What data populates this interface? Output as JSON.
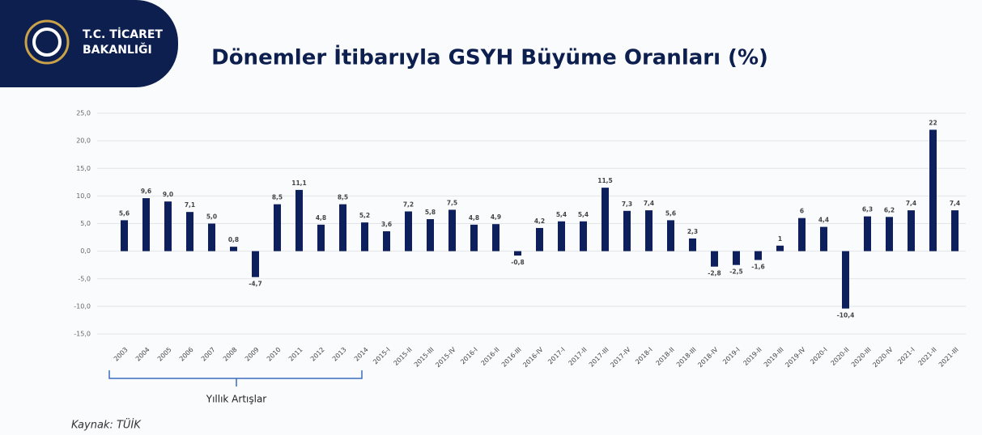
{
  "header": {
    "logo_line1": "T.C. TİCARET",
    "logo_line2": "BAKANLIĞI"
  },
  "chart_data": {
    "type": "bar",
    "title": "Dönemler İtibarıyla GSYH Büyüme Oranları (%)",
    "categories": [
      "2003",
      "2004",
      "2005",
      "2006",
      "2007",
      "2008",
      "2009",
      "2010",
      "2011",
      "2012",
      "2013",
      "2014",
      "2015-I",
      "2015-II",
      "2015-III",
      "2015-IV",
      "2016-I",
      "2016-II",
      "2016-III",
      "2016-IV",
      "2017-I",
      "2017-II",
      "2017-III",
      "2017-IV",
      "2018-I",
      "2018-II",
      "2018-III",
      "2018-IV",
      "2019-I",
      "2019-II",
      "2019-III",
      "2019-IV",
      "2020-I",
      "2020-II",
      "2020-III",
      "2020-IV",
      "2021-I",
      "2021-II",
      "2021-III"
    ],
    "values": [
      5.6,
      9.6,
      9.0,
      7.1,
      5.0,
      0.8,
      -4.7,
      8.5,
      11.1,
      4.8,
      8.5,
      5.2,
      3.6,
      7.2,
      5.8,
      7.5,
      4.8,
      4.9,
      -0.8,
      4.2,
      5.4,
      5.4,
      11.5,
      7.3,
      7.4,
      5.6,
      2.3,
      -2.8,
      -2.5,
      -1.6,
      1,
      6,
      4.4,
      -10.4,
      6.3,
      6.2,
      7.4,
      22,
      7.4
    ],
    "value_labels": [
      "5,6",
      "9,6",
      "9,0",
      "7,1",
      "5,0",
      "0,8",
      "-4,7",
      "8,5",
      "11,1",
      "4,8",
      "8,5",
      "5,2",
      "3,6",
      "7,2",
      "5,8",
      "7,5",
      "4,8",
      "4,9",
      "-0,8",
      "4,2",
      "5,4",
      "5,4",
      "11,5",
      "7,3",
      "7,4",
      "5,6",
      "2,3",
      "-2,8",
      "-2,5",
      "-1,6",
      "1",
      "6",
      "4,4",
      "-10,4",
      "6,3",
      "6,2",
      "7,4",
      "22",
      "7,4"
    ],
    "color": "#0d1f5c",
    "ylim": [
      -15,
      25
    ],
    "yticks": [
      {
        "value": -15,
        "label": "-15,0"
      },
      {
        "value": -10,
        "label": "-10,0"
      },
      {
        "value": -5,
        "label": "-5,0"
      },
      {
        "value": 0,
        "label": "0,0"
      },
      {
        "value": 5,
        "label": "5,0"
      },
      {
        "value": 10,
        "label": "10,0"
      },
      {
        "value": 15,
        "label": "15,0"
      },
      {
        "value": 20,
        "label": "20,0"
      },
      {
        "value": 25,
        "label": "25,0"
      }
    ],
    "grid": true,
    "annotation": "Yıllık Artışlar",
    "source": "Kaynak: TÜİK"
  }
}
